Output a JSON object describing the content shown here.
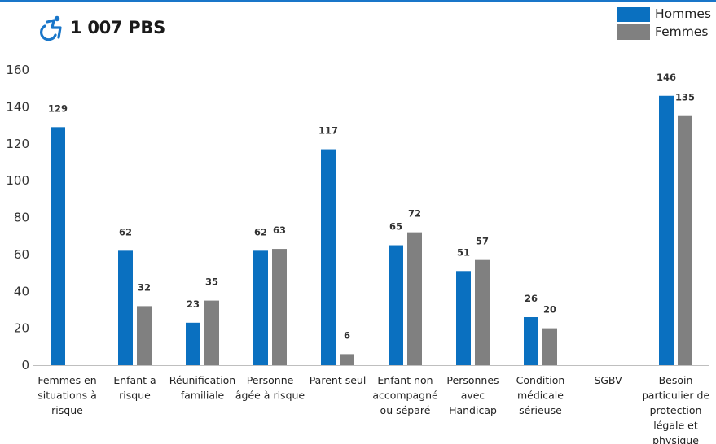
{
  "header": {
    "title": "1 007 PBS",
    "icon": "wheelchair-accessibility-icon",
    "icon_color": "#1976c9"
  },
  "colors": {
    "hommes": "#0a70c0",
    "femmes": "#808080",
    "top_rule": "#1976c9"
  },
  "chart_data": {
    "type": "bar",
    "title": "",
    "xlabel": "",
    "ylabel": "",
    "ylim": [
      0,
      160
    ],
    "yticks": [
      0,
      20,
      40,
      60,
      80,
      100,
      120,
      140,
      160
    ],
    "grid": false,
    "legend_position": "top-right",
    "categories": [
      [
        "Femmes en",
        "situations à",
        "risque"
      ],
      [
        "Enfant a",
        "risque"
      ],
      [
        "Réunification",
        "familiale"
      ],
      [
        "Personne",
        "âgée à risque"
      ],
      [
        "Parent seul"
      ],
      [
        "Enfant non",
        "accompagné",
        "ou séparé"
      ],
      [
        "Personnes",
        "avec",
        "Handicap"
      ],
      [
        "Condition",
        "médicale",
        "sérieuse"
      ],
      [
        "SGBV"
      ],
      [
        "Besoin",
        "particulier de",
        "protection",
        "légale et",
        "physique"
      ]
    ],
    "series": [
      {
        "name": "Hommes",
        "color": "#0a70c0",
        "values": [
          129,
          62,
          23,
          62,
          117,
          65,
          51,
          26,
          null,
          146
        ]
      },
      {
        "name": "Femmes",
        "color": "#808080",
        "values": [
          null,
          32,
          35,
          63,
          6,
          72,
          57,
          20,
          null,
          135
        ]
      }
    ]
  }
}
